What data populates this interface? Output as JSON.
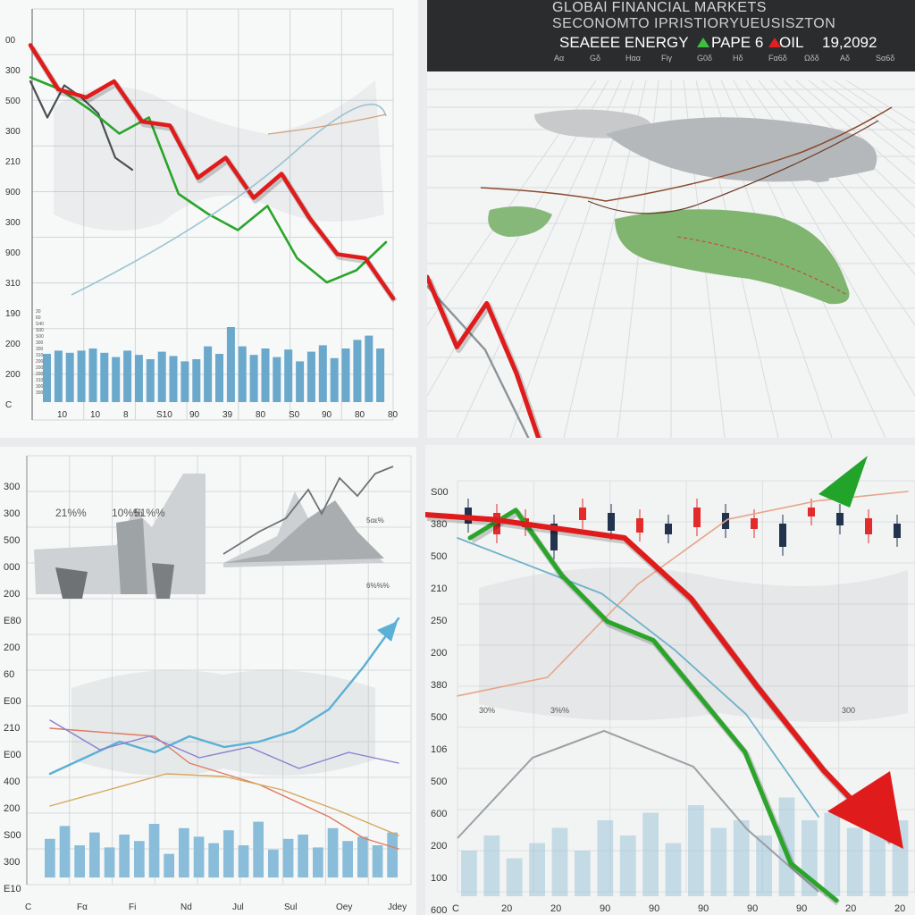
{
  "ticker": {
    "title": "GLOBAl FINANCIAL MARKETS",
    "subtitle": "SECONOMTO IPRISTIORYUEUSISZTON",
    "line": "SEAEEE ENERGY",
    "pape": "PAPE 6",
    "oil": "OIL",
    "value": "19,2092",
    "codes": [
      "Aα",
      "Gδ",
      "Hαα",
      "Fiγ",
      "G0δ",
      "Hδ",
      "Fα6δ",
      "Ωδδ",
      "Aδ",
      "Sα6δ"
    ],
    "colors": {
      "up": "#3fbf3f",
      "down": "#e02020",
      "bg": "#2b2c2e"
    }
  },
  "chart_data": [
    {
      "id": "top-left",
      "type": "line",
      "ylabels": [
        "00",
        "300",
        "500",
        "300",
        "210",
        "900",
        "300",
        "900",
        "310",
        "190",
        "200",
        "200",
        "C"
      ],
      "xlabels": [
        "10",
        "10",
        "8",
        "S10",
        "90",
        "39",
        "80",
        "S0",
        "90",
        "80",
        "80"
      ],
      "side_labels": [
        "30",
        "60",
        "S40",
        "S00",
        "S00",
        "300",
        "300",
        "310",
        "200",
        "200",
        "200",
        "310",
        "300",
        "300"
      ],
      "series": [
        {
          "color": "#e01b1b",
          "values": [
            0.09,
            0.2,
            0.22,
            0.18,
            0.28,
            0.29,
            0.42,
            0.37,
            0.47,
            0.41,
            0.52,
            0.61,
            0.62,
            0.72
          ]
        },
        {
          "color": "#2aa52a",
          "values": [
            0.17,
            0.2,
            0.25,
            0.31,
            0.27,
            0.46,
            0.51,
            0.55,
            0.49,
            0.62,
            0.68,
            0.65,
            0.58
          ]
        },
        {
          "color": "#4a4f55",
          "values": [
            0.18,
            0.27,
            0.19,
            0.22,
            0.26,
            0.37,
            0.4
          ]
        }
      ],
      "bars": [
        0.45,
        0.48,
        0.46,
        0.48,
        0.5,
        0.46,
        0.42,
        0.48,
        0.44,
        0.4,
        0.47,
        0.43,
        0.38,
        0.4,
        0.52,
        0.45,
        0.7,
        0.52,
        0.44,
        0.5,
        0.42,
        0.49,
        0.38,
        0.47,
        0.53,
        0.41,
        0.5,
        0.58,
        0.62,
        0.5
      ]
    },
    {
      "id": "top-right",
      "type": "line",
      "series": [
        {
          "color": "#e01b1b",
          "values": [
            0.0,
            0.16,
            0.06,
            0.22,
            0.42,
            0.62,
            0.86
          ]
        },
        {
          "color": "#8c949a",
          "values": [
            0.02,
            0.16,
            0.42
          ]
        }
      ]
    },
    {
      "id": "bottom-left",
      "type": "line",
      "ylabels": [
        "300",
        "300",
        "500",
        "000",
        "200",
        "E80",
        "200",
        "60",
        "E00",
        "210",
        "E00",
        "400",
        "200",
        "S00",
        "300",
        "E10"
      ],
      "xlabels": [
        "C",
        "Fα",
        "Fi",
        "Nd",
        "Jul",
        "Sul",
        "Oey",
        "Jdey"
      ],
      "annotations": [
        "21%%",
        "10%%",
        "51%%",
        "5αε%",
        "6%%%"
      ],
      "series": [
        {
          "color": "#e07a5f",
          "values": [
            0.55,
            0.56,
            0.57,
            0.58,
            0.68,
            0.72,
            0.76,
            0.82,
            0.88,
            0.96,
            1.0
          ]
        },
        {
          "color": "#5bb0d6",
          "values": [
            0.72,
            0.66,
            0.6,
            0.64,
            0.58,
            0.62,
            0.6,
            0.56,
            0.48,
            0.32,
            0.14
          ]
        },
        {
          "color": "#8a7fd0",
          "values": [
            0.52,
            0.63,
            0.58,
            0.66,
            0.62,
            0.7,
            0.64,
            0.68
          ]
        },
        {
          "color": "#d5a95d",
          "values": [
            0.84,
            0.78,
            0.72,
            0.73,
            0.78,
            0.86,
            0.95
          ]
        }
      ],
      "bars": [
        0.36,
        0.48,
        0.3,
        0.42,
        0.28,
        0.4,
        0.34,
        0.5,
        0.22,
        0.46,
        0.38,
        0.32,
        0.44,
        0.3,
        0.52,
        0.26,
        0.36,
        0.4,
        0.28,
        0.46,
        0.34,
        0.38,
        0.3,
        0.42
      ]
    },
    {
      "id": "bottom-right",
      "type": "line",
      "ylabels": [
        "S00",
        "380",
        "500",
        "210",
        "250",
        "200",
        "380",
        "500",
        "106",
        "500",
        "600",
        "200",
        "100",
        "600"
      ],
      "xlabels": [
        "C",
        "20",
        "20",
        "90",
        "90",
        "90",
        "90",
        "90",
        "20",
        "20"
      ],
      "annotations": [
        "30%",
        "3%%",
        "300"
      ],
      "series": [
        {
          "color": "#e01b1b",
          "values": [
            0.15,
            0.16,
            0.18,
            0.2,
            0.33,
            0.52,
            0.7,
            0.85
          ]
        },
        {
          "color": "#2aa52a",
          "values": [
            0.8,
            0.86,
            0.72,
            0.62,
            0.58,
            0.46,
            0.34,
            0.1,
            0.02
          ]
        },
        {
          "color": "#6fb2c9",
          "values": [
            0.8,
            0.74,
            0.68,
            0.56,
            0.42,
            0.2
          ]
        },
        {
          "color": "#e7a589",
          "values": [
            0.9,
            0.88,
            0.84,
            0.7,
            0.5,
            0.46
          ]
        }
      ],
      "candles": [
        {
          "bull": false,
          "h": 18
        },
        {
          "bull": true,
          "h": 24
        },
        {
          "bull": true,
          "h": 10
        },
        {
          "bull": false,
          "h": 30
        },
        {
          "bull": true,
          "h": 14
        },
        {
          "bull": false,
          "h": 20
        },
        {
          "bull": true,
          "h": 16
        },
        {
          "bull": false,
          "h": 12
        },
        {
          "bull": true,
          "h": 22
        },
        {
          "bull": false,
          "h": 18
        },
        {
          "bull": true,
          "h": 12
        },
        {
          "bull": false,
          "h": 26
        },
        {
          "bull": true,
          "h": 10
        },
        {
          "bull": false,
          "h": 14
        },
        {
          "bull": true,
          "h": 18
        },
        {
          "bull": false,
          "h": 16
        }
      ]
    }
  ]
}
